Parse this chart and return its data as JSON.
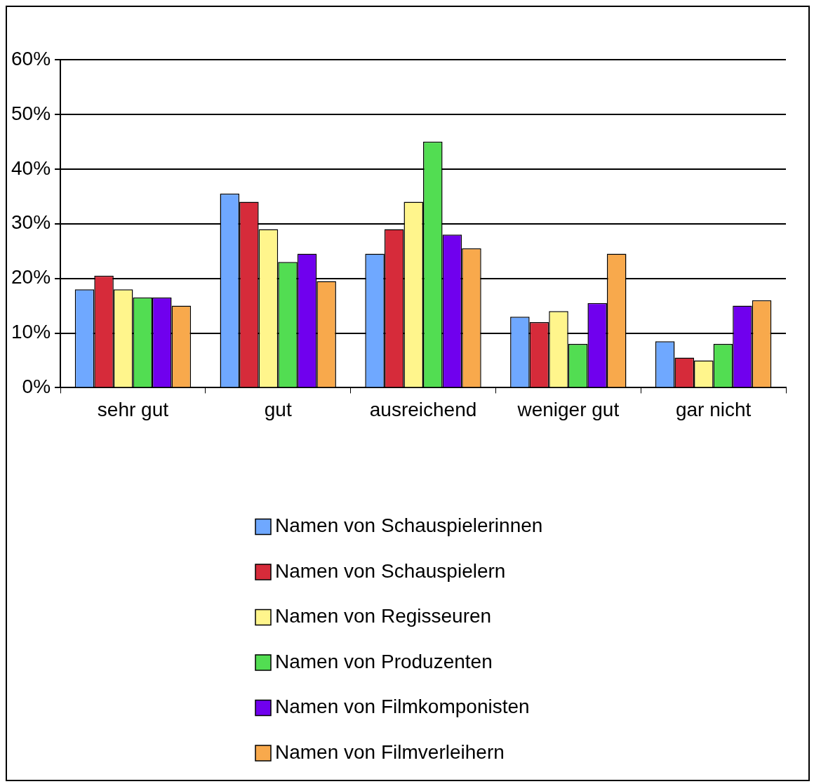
{
  "chart_data": {
    "type": "bar",
    "categories": [
      "sehr gut",
      "gut",
      "ausreichend",
      "weniger gut",
      "gar nicht"
    ],
    "series": [
      {
        "name": "Namen von Schauspielerinnen",
        "color": "#6fa8ff",
        "values": [
          18,
          35.5,
          24.5,
          13,
          8.5
        ]
      },
      {
        "name": "Namen von Schauspielern",
        "color": "#d62b3a",
        "values": [
          20.5,
          34,
          29,
          12,
          5.5
        ]
      },
      {
        "name": "Namen von Regisseuren",
        "color": "#fff58c",
        "values": [
          18,
          29,
          34,
          14,
          5
        ]
      },
      {
        "name": "Namen von Produzenten",
        "color": "#52dd52",
        "values": [
          16.5,
          23,
          45,
          8,
          8
        ]
      },
      {
        "name": "Namen von Filmkomponisten",
        "color": "#7000ee",
        "values": [
          16.5,
          24.5,
          28,
          15.5,
          15
        ]
      },
      {
        "name": "Namen von Filmverleihern",
        "color": "#f8a94c",
        "values": [
          15,
          19.5,
          25.5,
          24.5,
          16
        ]
      }
    ],
    "ylim": [
      0,
      60
    ],
    "yticks": [
      {
        "value": 0,
        "label": "0%"
      },
      {
        "value": 10,
        "label": "10%"
      },
      {
        "value": 20,
        "label": "20%"
      },
      {
        "value": 30,
        "label": "30%"
      },
      {
        "value": 40,
        "label": "40%"
      },
      {
        "value": 50,
        "label": "50%"
      },
      {
        "value": 60,
        "label": "60%"
      }
    ],
    "grid": "y",
    "legend": "bottom"
  }
}
